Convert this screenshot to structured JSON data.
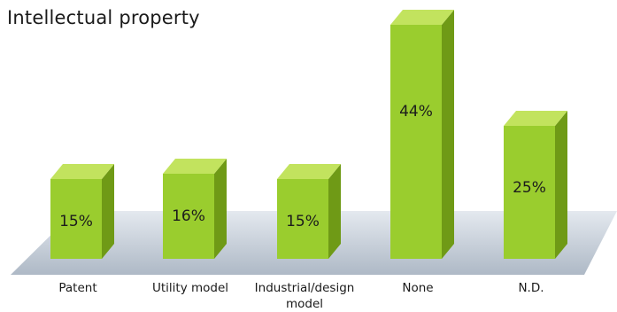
{
  "chart_data": {
    "type": "bar",
    "title": "Intellectual property",
    "categories": [
      "Patent",
      "Utility model",
      "Industrial/design\nmodel",
      "None",
      "N.D."
    ],
    "values": [
      15,
      16,
      15,
      44,
      25
    ],
    "value_labels": [
      "15%",
      "16%",
      "15%",
      "44%",
      "25%"
    ],
    "ylim": [
      0,
      44
    ],
    "grid": false,
    "legend": "none",
    "colors": {
      "bar_front": "#9acd2e",
      "bar_top": "#c2e35e",
      "bar_side": "#6f9a16",
      "floor": "#c9d3de"
    }
  }
}
